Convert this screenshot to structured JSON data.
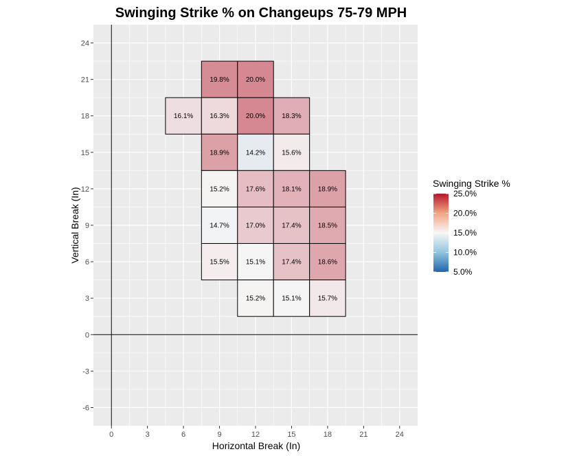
{
  "chart_data": {
    "type": "heatmap",
    "title": "Swinging Strike % on Changeups 75-79 MPH",
    "xlabel": "Horizontal Break (In)",
    "ylabel": "Vertical Break (In)",
    "xlim": [
      -1.5,
      25.5
    ],
    "ylim": [
      -7.5,
      25.5
    ],
    "x_ticks": [
      0,
      3,
      6,
      9,
      12,
      15,
      18,
      21,
      24
    ],
    "y_ticks": [
      -6,
      -3,
      0,
      3,
      6,
      9,
      12,
      15,
      18,
      21,
      24
    ],
    "grid": true,
    "cell_size": 3,
    "color_scale": {
      "low": "#2166ac",
      "mid": "#f7f7f7",
      "high": "#b2182b",
      "midpoint": 15.0,
      "limits": [
        5.0,
        25.0
      ]
    },
    "cells": [
      {
        "x": 9,
        "y": 21,
        "value": 19.8,
        "label": "19.8%"
      },
      {
        "x": 12,
        "y": 21,
        "value": 20.0,
        "label": "20.0%"
      },
      {
        "x": 6,
        "y": 18,
        "value": 16.1,
        "label": "16.1%"
      },
      {
        "x": 9,
        "y": 18,
        "value": 16.3,
        "label": "16.3%"
      },
      {
        "x": 12,
        "y": 18,
        "value": 20.0,
        "label": "20.0%"
      },
      {
        "x": 15,
        "y": 18,
        "value": 18.3,
        "label": "18.3%"
      },
      {
        "x": 9,
        "y": 15,
        "value": 18.9,
        "label": "18.9%"
      },
      {
        "x": 12,
        "y": 15,
        "value": 14.2,
        "label": "14.2%"
      },
      {
        "x": 15,
        "y": 15,
        "value": 15.6,
        "label": "15.6%"
      },
      {
        "x": 9,
        "y": 12,
        "value": 15.2,
        "label": "15.2%"
      },
      {
        "x": 12,
        "y": 12,
        "value": 17.6,
        "label": "17.6%"
      },
      {
        "x": 15,
        "y": 12,
        "value": 18.1,
        "label": "18.1%"
      },
      {
        "x": 18,
        "y": 12,
        "value": 18.9,
        "label": "18.9%"
      },
      {
        "x": 9,
        "y": 9,
        "value": 14.7,
        "label": "14.7%"
      },
      {
        "x": 12,
        "y": 9,
        "value": 17.0,
        "label": "17.0%"
      },
      {
        "x": 15,
        "y": 9,
        "value": 17.4,
        "label": "17.4%"
      },
      {
        "x": 18,
        "y": 9,
        "value": 18.5,
        "label": "18.5%"
      },
      {
        "x": 9,
        "y": 6,
        "value": 15.5,
        "label": "15.5%"
      },
      {
        "x": 12,
        "y": 6,
        "value": 15.1,
        "label": "15.1%"
      },
      {
        "x": 15,
        "y": 6,
        "value": 17.4,
        "label": "17.4%"
      },
      {
        "x": 18,
        "y": 6,
        "value": 18.6,
        "label": "18.6%"
      },
      {
        "x": 12,
        "y": 3,
        "value": 15.2,
        "label": "15.2%"
      },
      {
        "x": 15,
        "y": 3,
        "value": 15.1,
        "label": "15.1%"
      },
      {
        "x": 18,
        "y": 3,
        "value": 15.7,
        "label": "15.7%"
      }
    ],
    "legend": {
      "title": "Swinging Strike %",
      "placement": "right",
      "labels": [
        "25.0%",
        "20.0%",
        "15.0%",
        "10.0%",
        "5.0%"
      ],
      "values": [
        25.0,
        20.0,
        15.0,
        10.0,
        5.0
      ]
    }
  }
}
